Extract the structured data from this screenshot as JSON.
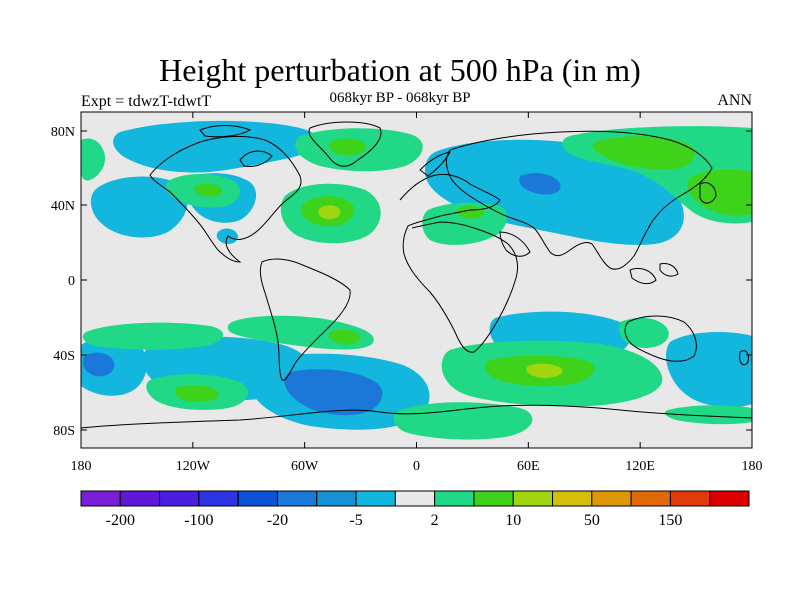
{
  "header": {
    "title": "Height perturbation at 500 hPa (in m)",
    "subtitle": "068kyr BP - 068kyr BP",
    "left_label": "Expt = tdwzT-tdwtT",
    "right_label": "ANN"
  },
  "map": {
    "lon_ticks": [
      "180",
      "120W",
      "60W",
      "0",
      "60E",
      "120E",
      "180"
    ],
    "lat_ticks": [
      "80N",
      "40N",
      "0",
      "40S",
      "80S"
    ]
  },
  "colorbar": {
    "colors": [
      "#7a1fd6",
      "#5f17d8",
      "#4a1ee0",
      "#2c34e4",
      "#0b52d4",
      "#1b78d8",
      "#1592d4",
      "#13b6dc",
      "#e8e8e8",
      "#20d886",
      "#3fd21a",
      "#a0d610",
      "#d2c00a",
      "#dc9806",
      "#e06806",
      "#e03c0a",
      "#dc0000"
    ],
    "labels": [
      "-200",
      "-100",
      "-20",
      "-5",
      "2",
      "10",
      "50",
      "150"
    ]
  }
}
